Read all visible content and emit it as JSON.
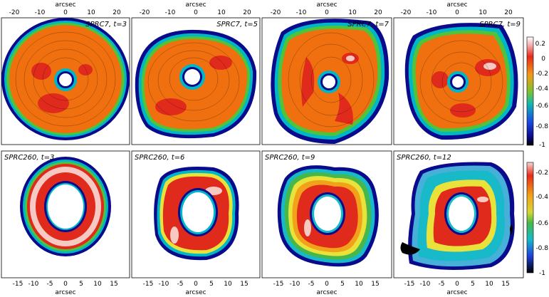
{
  "top_row": {
    "axis_label": "arcsec",
    "x_ticks": [
      "-20",
      "-10",
      "0",
      "10",
      "20"
    ],
    "panels": [
      {
        "title": "SPRC7, t=3"
      },
      {
        "title": "SPRC7, t=5"
      },
      {
        "title": "SPRC7, t=7"
      },
      {
        "title": "SPRC7, t=9"
      }
    ],
    "colorbar_ticks": [
      "0.2",
      "0",
      "-0.2",
      "-0.4",
      "-0.6",
      "-0.8",
      "-1"
    ]
  },
  "bottom_row": {
    "axis_label": "arcsec",
    "x_ticks": [
      "-15",
      "-10",
      "-5",
      "0",
      "5",
      "10",
      "15"
    ],
    "panels": [
      {
        "title": "SPRC260, t=3"
      },
      {
        "title": "SPRC260, t=6"
      },
      {
        "title": "SPRC260, t=9"
      },
      {
        "title": "SPRC260, t=12"
      }
    ],
    "colorbar_ticks": [
      "-0.2",
      "-0.4",
      "-0.6",
      "-0.8",
      "-1"
    ]
  },
  "colors": {
    "ring_outer": "#0a0a8c",
    "ring_mid": "#00b7c7",
    "ring_green": "#4fc33a",
    "fill_orange": "#f0700f",
    "fill_red": "#e02a1c",
    "fill_pink": "#f6c9c3",
    "fill_yellow": "#e8e23a"
  }
}
